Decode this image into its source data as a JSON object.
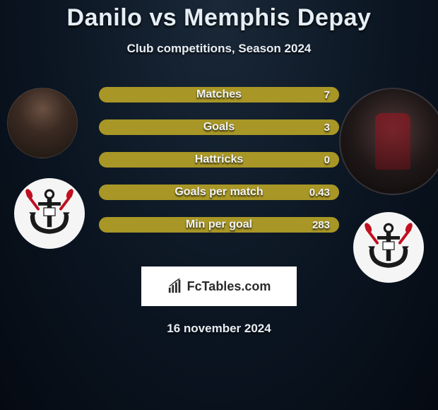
{
  "title": "Danilo vs Memphis Depay",
  "subtitle": "Club competitions, Season 2024",
  "date": "16 november 2024",
  "logo_text": "FcTables.com",
  "bar_colors": {
    "fill": "#a89626",
    "border": "#a89626"
  },
  "stats": [
    {
      "label": "Matches",
      "value": "7"
    },
    {
      "label": "Goals",
      "value": "3"
    },
    {
      "label": "Hattricks",
      "value": "0"
    },
    {
      "label": "Goals per match",
      "value": "0.43"
    },
    {
      "label": "Min per goal",
      "value": "283"
    }
  ],
  "crest_colors": {
    "bg": "#f5f5f5",
    "anchor": "#1a1a1a",
    "red": "#c01020"
  }
}
